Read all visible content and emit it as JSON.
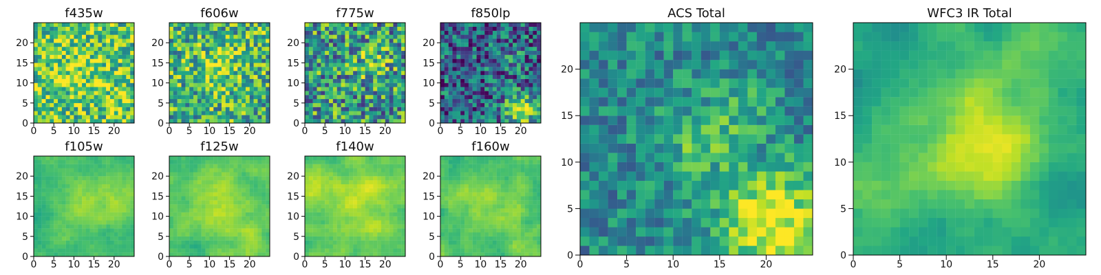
{
  "chart_data": [
    {
      "type": "heatmap",
      "title": "f435w",
      "xlabel": "",
      "ylabel": "",
      "x_ticks": [
        "0",
        "5",
        "10",
        "15",
        "20"
      ],
      "y_ticks": [
        "0",
        "5",
        "10",
        "15",
        "20"
      ],
      "xlim": [
        0,
        25
      ],
      "ylim": [
        0,
        25
      ],
      "grid_size": [
        25,
        25
      ],
      "colormap": "viridis",
      "grid": false,
      "pattern": {
        "type": "noise",
        "base": 0.72,
        "spread": 0.32,
        "seed": 435,
        "hotspots": [
          {
            "x": 10,
            "y": 12,
            "radius": 4,
            "amplitude": 0.18
          },
          {
            "x": 20,
            "y": 7,
            "radius": 3,
            "amplitude": 0.08
          }
        ]
      }
    },
    {
      "type": "heatmap",
      "title": "f606w",
      "xlabel": "",
      "ylabel": "",
      "x_ticks": [
        "0",
        "5",
        "10",
        "15",
        "20"
      ],
      "y_ticks": [
        "0",
        "5",
        "10",
        "15",
        "20"
      ],
      "xlim": [
        0,
        25
      ],
      "ylim": [
        0,
        25
      ],
      "grid_size": [
        25,
        25
      ],
      "colormap": "viridis",
      "grid": false,
      "pattern": {
        "type": "noise",
        "base": 0.64,
        "spread": 0.34,
        "seed": 606,
        "hotspots": [
          {
            "x": 12,
            "y": 13,
            "radius": 4,
            "amplitude": 0.22
          },
          {
            "x": 23,
            "y": 22,
            "radius": 2,
            "amplitude": 0.14
          }
        ]
      }
    },
    {
      "type": "heatmap",
      "title": "f775w",
      "xlabel": "",
      "ylabel": "",
      "x_ticks": [
        "0",
        "5",
        "10",
        "15",
        "20"
      ],
      "y_ticks": [
        "0",
        "5",
        "10",
        "15",
        "20"
      ],
      "xlim": [
        0,
        25
      ],
      "ylim": [
        0,
        25
      ],
      "grid_size": [
        25,
        25
      ],
      "colormap": "viridis",
      "grid": false,
      "pattern": {
        "type": "noise",
        "base": 0.54,
        "spread": 0.38,
        "seed": 775,
        "hotspots": [
          {
            "x": 16,
            "y": 14,
            "radius": 3,
            "amplitude": 0.2
          },
          {
            "x": 24,
            "y": 7,
            "radius": 2,
            "amplitude": 0.12
          }
        ]
      }
    },
    {
      "type": "heatmap",
      "title": "f850lp",
      "xlabel": "",
      "ylabel": "",
      "x_ticks": [
        "0",
        "5",
        "10",
        "15",
        "20"
      ],
      "y_ticks": [
        "0",
        "5",
        "10",
        "15",
        "20"
      ],
      "xlim": [
        0,
        25
      ],
      "ylim": [
        0,
        25
      ],
      "grid_size": [
        25,
        25
      ],
      "colormap": "viridis",
      "grid": false,
      "pattern": {
        "type": "noise",
        "base": 0.32,
        "spread": 0.34,
        "seed": 850,
        "hotspots": [
          {
            "x": 20,
            "y": 3,
            "radius": 3,
            "amplitude": 0.55
          },
          {
            "x": 17,
            "y": 16,
            "radius": 3,
            "amplitude": 0.1
          }
        ]
      }
    },
    {
      "type": "heatmap",
      "title": "f105w",
      "xlabel": "",
      "ylabel": "",
      "x_ticks": [
        "0",
        "5",
        "10",
        "15",
        "20"
      ],
      "y_ticks": [
        "0",
        "5",
        "10",
        "15",
        "20"
      ],
      "xlim": [
        0,
        25
      ],
      "ylim": [
        0,
        25
      ],
      "grid_size": [
        25,
        25
      ],
      "colormap": "viridis",
      "grid": false,
      "pattern": {
        "type": "smooth",
        "base": 0.68,
        "spread": 0.22,
        "seed": 105,
        "hotspots": [
          {
            "x": 13,
            "y": 13,
            "radius": 5,
            "amplitude": 0.18
          },
          {
            "x": 23,
            "y": 16,
            "radius": 4,
            "amplitude": 0.12
          }
        ]
      }
    },
    {
      "type": "heatmap",
      "title": "f125w",
      "xlabel": "",
      "ylabel": "",
      "x_ticks": [
        "0",
        "5",
        "10",
        "15",
        "20"
      ],
      "y_ticks": [
        "0",
        "5",
        "10",
        "15",
        "20"
      ],
      "xlim": [
        0,
        25
      ],
      "ylim": [
        0,
        25
      ],
      "grid_size": [
        25,
        25
      ],
      "colormap": "viridis",
      "grid": false,
      "pattern": {
        "type": "smooth",
        "base": 0.72,
        "spread": 0.22,
        "seed": 125,
        "hotspots": [
          {
            "x": 12,
            "y": 12,
            "radius": 5,
            "amplitude": 0.2
          },
          {
            "x": 20,
            "y": 2,
            "radius": 3,
            "amplitude": 0.12
          }
        ]
      }
    },
    {
      "type": "heatmap",
      "title": "f140w",
      "xlabel": "",
      "ylabel": "",
      "x_ticks": [
        "0",
        "5",
        "10",
        "15",
        "20"
      ],
      "y_ticks": [
        "0",
        "5",
        "10",
        "15",
        "20"
      ],
      "xlim": [
        0,
        25
      ],
      "ylim": [
        0,
        25
      ],
      "grid_size": [
        25,
        25
      ],
      "colormap": "viridis",
      "grid": false,
      "pattern": {
        "type": "smooth",
        "base": 0.74,
        "spread": 0.24,
        "seed": 140,
        "hotspots": [
          {
            "x": 12,
            "y": 13,
            "radius": 6,
            "amplitude": 0.16
          },
          {
            "x": 2,
            "y": 17,
            "radius": 3,
            "amplitude": 0.16
          }
        ]
      }
    },
    {
      "type": "heatmap",
      "title": "f160w",
      "xlabel": "",
      "ylabel": "",
      "x_ticks": [
        "0",
        "5",
        "10",
        "15",
        "20"
      ],
      "y_ticks": [
        "0",
        "5",
        "10",
        "15",
        "20"
      ],
      "xlim": [
        0,
        25
      ],
      "ylim": [
        0,
        25
      ],
      "grid_size": [
        25,
        25
      ],
      "colormap": "viridis",
      "grid": false,
      "pattern": {
        "type": "smooth",
        "base": 0.7,
        "spread": 0.25,
        "seed": 160,
        "hotspots": [
          {
            "x": 11,
            "y": 12,
            "radius": 5,
            "amplitude": 0.18
          },
          {
            "x": 20,
            "y": 2,
            "radius": 3,
            "amplitude": 0.12
          }
        ]
      }
    },
    {
      "type": "heatmap",
      "title": "ACS Total",
      "xlabel": "",
      "ylabel": "",
      "x_ticks": [
        "0",
        "5",
        "10",
        "15",
        "20"
      ],
      "y_ticks": [
        "0",
        "5",
        "10",
        "15",
        "20"
      ],
      "xlim": [
        0,
        25
      ],
      "ylim": [
        0,
        25
      ],
      "grid_size": [
        25,
        25
      ],
      "colormap": "viridis",
      "grid": false,
      "pattern": {
        "type": "noise",
        "base": 0.47,
        "spread": 0.2,
        "seed": 2025,
        "hotspots": [
          {
            "x": 20,
            "y": 3,
            "radius": 4,
            "amplitude": 0.55
          },
          {
            "x": 12,
            "y": 12,
            "radius": 3,
            "amplitude": 0.22
          },
          {
            "x": 17,
            "y": 15,
            "radius": 2,
            "amplitude": 0.16
          }
        ]
      }
    },
    {
      "type": "heatmap",
      "title": "WFC3 IR Total",
      "xlabel": "",
      "ylabel": "",
      "x_ticks": [
        "0",
        "5",
        "10",
        "15",
        "20"
      ],
      "y_ticks": [
        "0",
        "5",
        "10",
        "15",
        "20"
      ],
      "xlim": [
        0,
        25
      ],
      "ylim": [
        0,
        25
      ],
      "grid_size": [
        25,
        25
      ],
      "colormap": "viridis",
      "grid": false,
      "pattern": {
        "type": "smooth",
        "base": 0.58,
        "spread": 0.24,
        "seed": 3030,
        "hotspots": [
          {
            "x": 13,
            "y": 12,
            "radius": 5,
            "amplitude": 0.38
          },
          {
            "x": 20,
            "y": 22,
            "radius": 3,
            "amplitude": 0.12
          },
          {
            "x": 2,
            "y": 7,
            "radius": 3,
            "amplitude": 0.14
          }
        ]
      }
    }
  ]
}
